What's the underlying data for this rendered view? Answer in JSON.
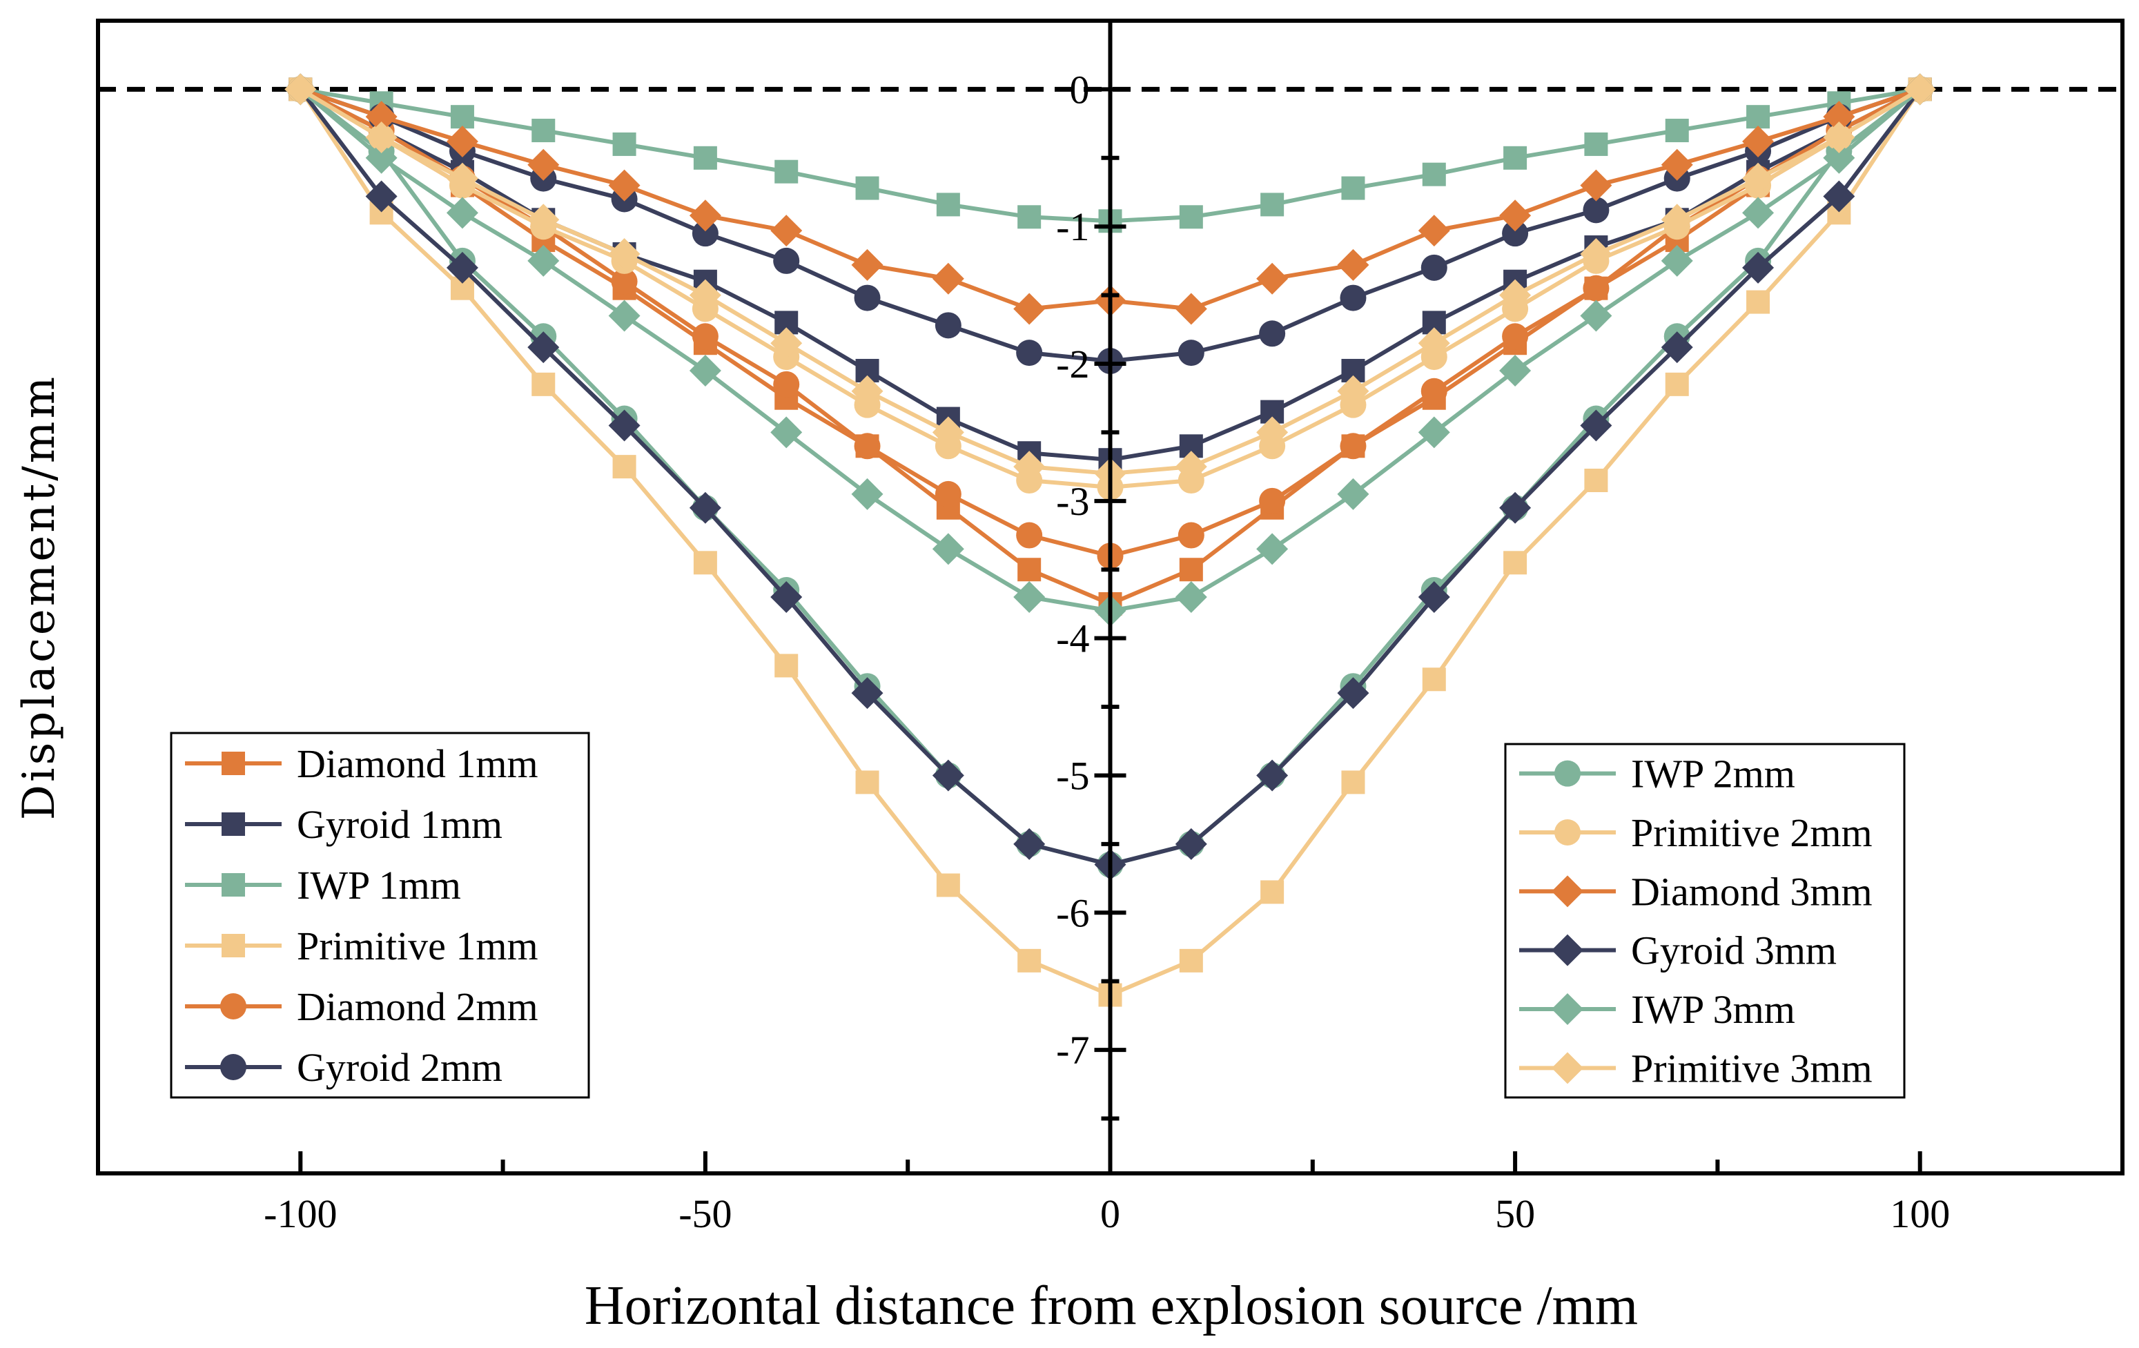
{
  "chart_data": {
    "type": "line",
    "title": "",
    "xlabel": "Horizontal distance from explosion source /mm",
    "ylabel": "Displacement/mm",
    "xlim": [
      -125,
      125
    ],
    "ylim": [
      -7.9,
      0.5
    ],
    "xticks": [
      -100,
      -50,
      0,
      50,
      100
    ],
    "xtick_labels": [
      "-100",
      "-50",
      "0",
      "50",
      "100"
    ],
    "yticks": [
      0,
      -1,
      -2,
      -3,
      -4,
      -5,
      -6,
      -7
    ],
    "ytick_labels": [
      "0",
      "-1",
      "-2",
      "-3",
      "-4",
      "-5",
      "-6",
      "-7"
    ],
    "reference_line": {
      "y": 0,
      "style": "dashed"
    },
    "x": [
      -100,
      -90,
      -80,
      -70,
      -60,
      -50,
      -40,
      -30,
      -20,
      -10,
      0,
      10,
      20,
      30,
      40,
      50,
      60,
      70,
      80,
      90,
      100
    ],
    "series": [
      {
        "name": "Diamond 1mm",
        "marker": "square",
        "color": "#E07B39",
        "values": [
          0,
          -0.35,
          -0.7,
          -1.1,
          -1.45,
          -1.85,
          -2.25,
          -2.6,
          -3.05,
          -3.5,
          -3.75,
          -3.5,
          -3.05,
          -2.6,
          -2.25,
          -1.85,
          -1.45,
          -1.1,
          -0.7,
          -0.35,
          0
        ]
      },
      {
        "name": "Gyroid 1mm",
        "marker": "square",
        "color": "#3A3F5C",
        "values": [
          0,
          -0.3,
          -0.6,
          -0.95,
          -1.2,
          -1.4,
          -1.7,
          -2.05,
          -2.4,
          -2.65,
          -2.7,
          -2.6,
          -2.35,
          -2.05,
          -1.7,
          -1.4,
          -1.15,
          -0.95,
          -0.6,
          -0.3,
          0
        ]
      },
      {
        "name": "IWP 1mm",
        "marker": "square",
        "color": "#7FB39A",
        "values": [
          0,
          -0.1,
          -0.2,
          -0.3,
          -0.4,
          -0.5,
          -0.6,
          -0.72,
          -0.84,
          -0.93,
          -0.96,
          -0.93,
          -0.84,
          -0.72,
          -0.62,
          -0.5,
          -0.4,
          -0.3,
          -0.2,
          -0.1,
          0
        ]
      },
      {
        "name": "Primitive 1mm",
        "marker": "square",
        "color": "#F3C98A",
        "values": [
          0,
          -0.9,
          -1.45,
          -2.15,
          -2.75,
          -3.45,
          -4.2,
          -5.05,
          -5.8,
          -6.35,
          -6.6,
          -6.35,
          -5.85,
          -5.05,
          -4.3,
          -3.45,
          -2.85,
          -2.15,
          -1.55,
          -0.9,
          0
        ]
      },
      {
        "name": "Diamond 2mm",
        "marker": "circle",
        "color": "#E07B39",
        "values": [
          0,
          -0.3,
          -0.65,
          -1.0,
          -1.4,
          -1.8,
          -2.15,
          -2.6,
          -2.95,
          -3.25,
          -3.4,
          -3.25,
          -3.0,
          -2.6,
          -2.2,
          -1.8,
          -1.45,
          -1.0,
          -0.65,
          -0.3,
          0
        ]
      },
      {
        "name": "Gyroid 2mm",
        "marker": "circle",
        "color": "#3A3F5C",
        "values": [
          0,
          -0.2,
          -0.45,
          -0.65,
          -0.8,
          -1.05,
          -1.25,
          -1.52,
          -1.72,
          -1.92,
          -1.98,
          -1.92,
          -1.78,
          -1.52,
          -1.3,
          -1.05,
          -0.88,
          -0.65,
          -0.45,
          -0.2,
          0
        ]
      },
      {
        "name": "IWP 2mm",
        "marker": "circle",
        "color": "#7FB39A",
        "values": [
          0,
          -0.45,
          -1.25,
          -1.8,
          -2.4,
          -3.05,
          -3.65,
          -4.35,
          -5.0,
          -5.5,
          -5.65,
          -5.5,
          -5.0,
          -4.35,
          -3.65,
          -3.05,
          -2.4,
          -1.8,
          -1.25,
          -0.45,
          0
        ]
      },
      {
        "name": "Primitive 2mm",
        "marker": "circle",
        "color": "#F3C98A",
        "values": [
          0,
          -0.35,
          -0.7,
          -1.0,
          -1.25,
          -1.6,
          -1.95,
          -2.3,
          -2.6,
          -2.85,
          -2.9,
          -2.85,
          -2.6,
          -2.3,
          -1.95,
          -1.6,
          -1.25,
          -1.0,
          -0.7,
          -0.35,
          0
        ]
      },
      {
        "name": "Diamond 3mm",
        "marker": "diamond",
        "color": "#E07B39",
        "values": [
          0,
          -0.2,
          -0.38,
          -0.55,
          -0.7,
          -0.92,
          -1.03,
          -1.28,
          -1.38,
          -1.6,
          -1.54,
          -1.6,
          -1.38,
          -1.28,
          -1.03,
          -0.92,
          -0.7,
          -0.55,
          -0.38,
          -0.2,
          0
        ]
      },
      {
        "name": "Gyroid 3mm",
        "marker": "diamond",
        "color": "#3A3F5C",
        "values": [
          0,
          -0.78,
          -1.3,
          -1.88,
          -2.45,
          -3.05,
          -3.7,
          -4.4,
          -5.0,
          -5.5,
          -5.65,
          -5.5,
          -5.0,
          -4.4,
          -3.7,
          -3.05,
          -2.45,
          -1.88,
          -1.3,
          -0.78,
          0
        ]
      },
      {
        "name": "IWP 3mm",
        "marker": "diamond",
        "color": "#7FB39A",
        "values": [
          0,
          -0.5,
          -0.9,
          -1.25,
          -1.65,
          -2.05,
          -2.5,
          -2.95,
          -3.35,
          -3.7,
          -3.8,
          -3.7,
          -3.35,
          -2.95,
          -2.5,
          -2.05,
          -1.65,
          -1.25,
          -0.9,
          -0.5,
          0
        ]
      },
      {
        "name": "Primitive 3mm",
        "marker": "diamond",
        "color": "#F3C98A",
        "values": [
          0,
          -0.35,
          -0.65,
          -0.95,
          -1.2,
          -1.5,
          -1.85,
          -2.2,
          -2.5,
          -2.75,
          -2.8,
          -2.75,
          -2.5,
          -2.2,
          -1.85,
          -1.5,
          -1.2,
          -0.95,
          -0.65,
          -0.35,
          0
        ]
      }
    ],
    "legends": [
      {
        "position": "bottom-left",
        "entries": [
          "Diamond 1mm",
          "Gyroid 1mm",
          "IWP 1mm",
          "Primitive 1mm",
          "Diamond 2mm",
          "Gyroid 2mm"
        ]
      },
      {
        "position": "bottom-right",
        "entries": [
          "IWP 2mm",
          "Primitive 2mm",
          "Diamond 3mm",
          "Gyroid 3mm",
          "IWP 3mm",
          "Primitive 3mm"
        ]
      }
    ]
  }
}
